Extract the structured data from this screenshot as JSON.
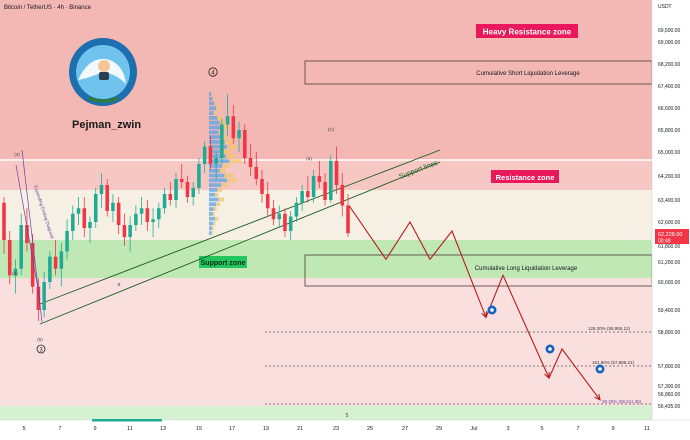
{
  "header": {
    "symbol": "Bitcoin / TetherUS · 4h · Binance",
    "currency": "USDT"
  },
  "branding": {
    "author": "Pejman_zwin"
  },
  "colors": {
    "heavy_resistance": "#f4b8b4",
    "resistance": "#f6c7c3",
    "neutral": "#f6f0e4",
    "support": "#bfe8b4",
    "below": "#f9e0df",
    "candle_up": "#22ab94",
    "candle_down": "#f23645",
    "projection": "#b71c1c",
    "support_line": "#1b5e20",
    "label_bg": "#e8185a",
    "support_label_bg": "#22c55e",
    "price_tag": "#f23645"
  },
  "zones": {
    "heavy_resistance": {
      "label": "Heavy Resistance zone"
    },
    "resistance": {
      "label": "Resistance zone"
    },
    "support": {
      "label": "Support zone"
    },
    "support_lines": {
      "label": "Support lines"
    },
    "short_liq": {
      "label": "Cumulative Short Liquidation Leverage"
    },
    "long_liq": {
      "label": "Cumulative Long Liquidation Leverage"
    }
  },
  "fib_levels": [
    {
      "label": "128.20% (58,955.12)",
      "price": 58955.12
    },
    {
      "label": "161.80% (57,886.21)",
      "price": 57886.21
    },
    {
      "label": "38.20% (56,611.35)",
      "price": 56611.35
    }
  ],
  "current_price": {
    "price": "62,228.00",
    "countdown": "00:48"
  },
  "wave_labels": [
    {
      "text": "4",
      "kind": "circled"
    },
    {
      "text": "5",
      "kind": "circled-small"
    },
    {
      "text": "3",
      "kind": "circled"
    },
    {
      "text": "(4)",
      "kind": "small"
    },
    {
      "text": "(5)",
      "kind": "small"
    },
    {
      "text": "(C)",
      "kind": "small"
    },
    {
      "text": "(a)",
      "kind": "small"
    },
    {
      "text": "B",
      "kind": "small"
    },
    {
      "text": "(3)",
      "kind": "small"
    }
  ],
  "diagonal_label": "Expanding Ending Diagonal",
  "chart_data": {
    "type": "candlestick",
    "title": "Bitcoin / TetherUS · 4h · Binance",
    "y_axis": {
      "ticks": [
        "69,500.00",
        "69,000.00",
        "68,200.00",
        "67,400.00",
        "66,600.00",
        "65,800.00",
        "65,000.00",
        "64,200.00",
        "63,400.00",
        "62,600.00",
        "61,800.00",
        "61,200.00",
        "60,600.00",
        "59,400.00",
        "58,800.00",
        "57,800.00",
        "57,300.00",
        "56,860.00",
        "56,435.00"
      ],
      "range": [
        56300,
        69900
      ]
    },
    "x_axis": {
      "ticks": [
        "5",
        "7",
        "9",
        "11",
        "13",
        "15",
        "17",
        "19",
        "21",
        "23",
        "25",
        "27",
        "29",
        "Jul",
        "3",
        "5",
        "7",
        "9",
        "11"
      ]
    },
    "ohlc": [
      [
        63300,
        63500,
        61500,
        62000
      ],
      [
        62000,
        62300,
        60500,
        60800
      ],
      [
        60800,
        61300,
        60100,
        61000
      ],
      [
        61000,
        62900,
        60800,
        62500
      ],
      [
        62500,
        63100,
        61600,
        61900
      ],
      [
        61900,
        62200,
        60100,
        60400
      ],
      [
        60400,
        60700,
        59100,
        59400
      ],
      [
        59400,
        60900,
        59200,
        60600
      ],
      [
        60600,
        61600,
        60300,
        61400
      ],
      [
        61400,
        62000,
        60800,
        61000
      ],
      [
        61000,
        61900,
        60400,
        61600
      ],
      [
        61600,
        62700,
        61300,
        62300
      ],
      [
        62300,
        63200,
        62000,
        62900
      ],
      [
        62900,
        63500,
        62500,
        63100
      ],
      [
        63100,
        63500,
        62100,
        62400
      ],
      [
        62400,
        62800,
        61900,
        62600
      ],
      [
        62600,
        63800,
        62400,
        63600
      ],
      [
        63600,
        64300,
        63100,
        63900
      ],
      [
        63900,
        64100,
        62800,
        63000
      ],
      [
        63000,
        63600,
        62600,
        63300
      ],
      [
        63300,
        63500,
        62200,
        62500
      ],
      [
        62500,
        62900,
        61800,
        62100
      ],
      [
        62100,
        62800,
        61600,
        62500
      ],
      [
        62500,
        63200,
        62300,
        62900
      ],
      [
        62900,
        63500,
        62500,
        63100
      ],
      [
        63100,
        63400,
        62300,
        62600
      ],
      [
        62600,
        63100,
        62100,
        62700
      ],
      [
        62700,
        63300,
        62400,
        63100
      ],
      [
        63100,
        63800,
        62900,
        63600
      ],
      [
        63600,
        64000,
        63200,
        63400
      ],
      [
        63400,
        64300,
        63100,
        64100
      ],
      [
        64100,
        64600,
        63800,
        64000
      ],
      [
        64000,
        64200,
        63300,
        63500
      ],
      [
        63500,
        64000,
        63200,
        63800
      ],
      [
        63800,
        64800,
        63600,
        64600
      ],
      [
        64600,
        65400,
        64300,
        65200
      ],
      [
        65200,
        65600,
        64400,
        64600
      ],
      [
        64600,
        65000,
        64100,
        64800
      ],
      [
        64800,
        66200,
        64600,
        66000
      ],
      [
        66000,
        67100,
        65600,
        66300
      ],
      [
        66300,
        66700,
        65300,
        65500
      ],
      [
        65500,
        66100,
        65000,
        65800
      ],
      [
        65800,
        66000,
        64600,
        64800
      ],
      [
        64800,
        65300,
        64200,
        64500
      ],
      [
        64500,
        65000,
        63900,
        64100
      ],
      [
        64100,
        64400,
        63300,
        63600
      ],
      [
        63600,
        64000,
        62800,
        63100
      ],
      [
        63100,
        63400,
        62500,
        62700
      ],
      [
        62700,
        63200,
        62400,
        62900
      ],
      [
        62900,
        63100,
        62100,
        62300
      ],
      [
        62300,
        63000,
        62000,
        62800
      ],
      [
        62800,
        63500,
        62600,
        63300
      ],
      [
        63300,
        63900,
        63000,
        63700
      ],
      [
        63700,
        64200,
        63300,
        63500
      ],
      [
        63500,
        64400,
        63300,
        64200
      ],
      [
        64200,
        64700,
        63800,
        64000
      ],
      [
        64000,
        64300,
        63200,
        63400
      ],
      [
        63400,
        64900,
        63300,
        64700
      ],
      [
        64700,
        65200,
        63600,
        63900
      ],
      [
        63900,
        64300,
        62800,
        63200
      ],
      [
        63200,
        63600,
        62100,
        62228
      ]
    ],
    "projection_path": [
      63200,
      61300,
      62600,
      61300,
      62300,
      59200,
      60800,
      57500,
      58300,
      56700
    ]
  }
}
